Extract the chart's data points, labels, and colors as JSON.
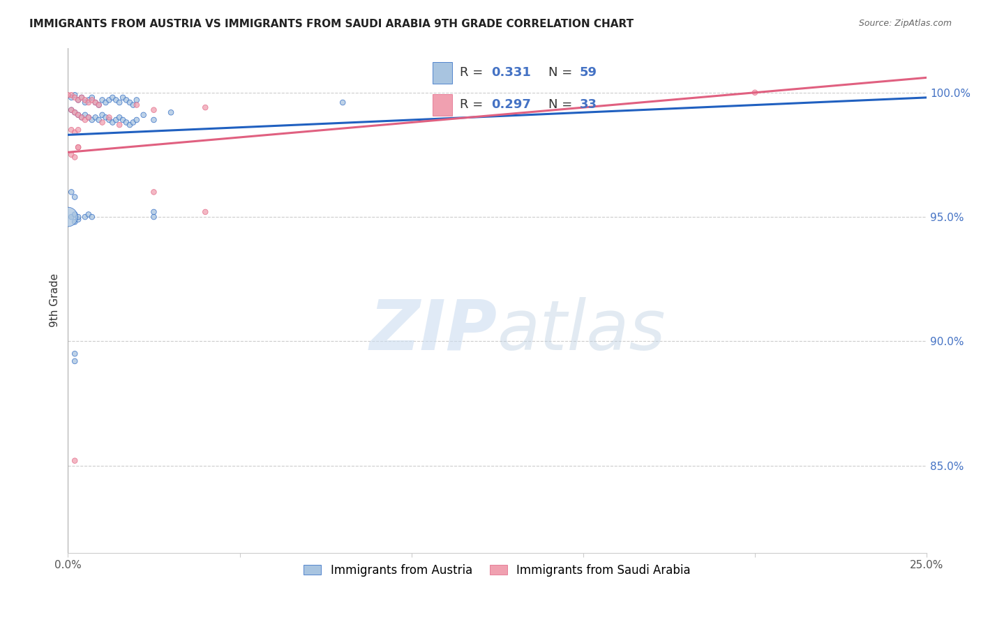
{
  "title": "IMMIGRANTS FROM AUSTRIA VS IMMIGRANTS FROM SAUDI ARABIA 9TH GRADE CORRELATION CHART",
  "source": "Source: ZipAtlas.com",
  "ylabel": "9th Grade",
  "ylabel_ticks": [
    "100.0%",
    "95.0%",
    "90.0%",
    "85.0%"
  ],
  "ylabel_tick_vals": [
    1.0,
    0.95,
    0.9,
    0.85
  ],
  "xlim": [
    0.0,
    0.25
  ],
  "ylim": [
    0.815,
    1.018
  ],
  "austria_R": 0.331,
  "austria_N": 59,
  "saudi_R": 0.297,
  "saudi_N": 33,
  "austria_color": "#a8c4e0",
  "saudi_color": "#f0a0b0",
  "austria_line_color": "#2060c0",
  "saudi_line_color": "#e06080",
  "legend_label_austria": "Immigrants from Austria",
  "legend_label_saudi": "Immigrants from Saudi Arabia",
  "austria_x": [
    0.001,
    0.002,
    0.003,
    0.004,
    0.005,
    0.006,
    0.007,
    0.008,
    0.009,
    0.01,
    0.011,
    0.012,
    0.013,
    0.014,
    0.015,
    0.016,
    0.017,
    0.018,
    0.019,
    0.02,
    0.001,
    0.002,
    0.003,
    0.004,
    0.005,
    0.006,
    0.007,
    0.008,
    0.009,
    0.01,
    0.011,
    0.012,
    0.013,
    0.014,
    0.015,
    0.016,
    0.017,
    0.018,
    0.019,
    0.02,
    0.001,
    0.002,
    0.003,
    0.002,
    0.003,
    0.001,
    0.002,
    0.0,
    0.022,
    0.025,
    0.03,
    0.08,
    0.025,
    0.025,
    0.002,
    0.002,
    0.005,
    0.006,
    0.007
  ],
  "austria_y": [
    0.998,
    0.999,
    0.997,
    0.998,
    0.996,
    0.997,
    0.998,
    0.996,
    0.995,
    0.997,
    0.996,
    0.997,
    0.998,
    0.997,
    0.996,
    0.998,
    0.997,
    0.996,
    0.995,
    0.997,
    0.993,
    0.992,
    0.991,
    0.99,
    0.991,
    0.99,
    0.989,
    0.99,
    0.989,
    0.991,
    0.99,
    0.989,
    0.988,
    0.989,
    0.99,
    0.989,
    0.988,
    0.987,
    0.988,
    0.989,
    0.95,
    0.948,
    0.949,
    0.951,
    0.95,
    0.96,
    0.958,
    0.95,
    0.991,
    0.989,
    0.992,
    0.996,
    0.95,
    0.952,
    0.895,
    0.892,
    0.95,
    0.951,
    0.95
  ],
  "austria_sizes": [
    30,
    30,
    30,
    30,
    30,
    30,
    30,
    30,
    30,
    30,
    30,
    30,
    30,
    30,
    30,
    30,
    30,
    30,
    30,
    30,
    30,
    30,
    30,
    30,
    30,
    30,
    30,
    30,
    30,
    30,
    30,
    30,
    30,
    30,
    30,
    30,
    30,
    30,
    30,
    30,
    30,
    30,
    30,
    30,
    30,
    30,
    30,
    400,
    30,
    30,
    30,
    30,
    30,
    30,
    30,
    30,
    30,
    30,
    30
  ],
  "saudi_x": [
    0.001,
    0.002,
    0.003,
    0.004,
    0.005,
    0.006,
    0.007,
    0.008,
    0.009,
    0.001,
    0.002,
    0.003,
    0.004,
    0.005,
    0.006,
    0.001,
    0.002,
    0.003,
    0.001,
    0.002,
    0.003,
    0.01,
    0.012,
    0.015,
    0.02,
    0.025,
    0.04,
    0.2,
    0.003,
    0.025,
    0.04,
    0.002,
    0.0
  ],
  "saudi_y": [
    0.999,
    0.998,
    0.997,
    0.998,
    0.997,
    0.996,
    0.997,
    0.996,
    0.995,
    0.993,
    0.992,
    0.991,
    0.99,
    0.989,
    0.99,
    0.985,
    0.984,
    0.985,
    0.975,
    0.974,
    0.978,
    0.988,
    0.99,
    0.987,
    0.995,
    0.993,
    0.994,
    1.0,
    0.978,
    0.96,
    0.952,
    0.852,
    0.999
  ],
  "saudi_sizes": [
    30,
    30,
    30,
    30,
    30,
    30,
    30,
    30,
    30,
    30,
    30,
    30,
    30,
    30,
    30,
    30,
    30,
    30,
    30,
    30,
    30,
    30,
    30,
    30,
    30,
    30,
    30,
    30,
    30,
    30,
    30,
    30,
    30
  ],
  "austria_trend_x": [
    0.0,
    0.25
  ],
  "austria_trend_y": [
    0.983,
    0.998
  ],
  "saudi_trend_x": [
    0.0,
    0.25
  ],
  "saudi_trend_y": [
    0.976,
    1.006
  ]
}
